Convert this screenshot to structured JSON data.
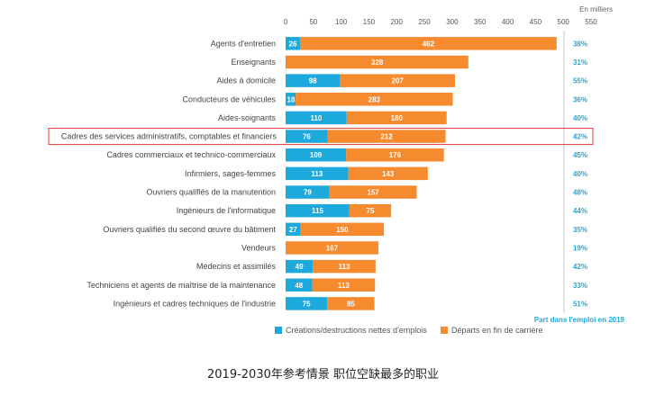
{
  "chart_data": {
    "type": "bar",
    "stacked": true,
    "orientation": "horizontal",
    "unit_label": "En milliers",
    "xlim": [
      0,
      550
    ],
    "xticks": [
      0,
      50,
      100,
      150,
      200,
      250,
      300,
      350,
      400,
      450,
      500,
      550
    ],
    "categories": [
      "Agents d'entretien",
      "Enseignants",
      "Aides à domicile",
      "Conducteurs de véhicules",
      "Aides-soignants",
      "Cadres des services administratifs, comptables et financiers",
      "Cadres commerciaux et technico-commerciaux",
      "Infirmiers, sages-femmes",
      "Ouvriers qualifiés de la manutention",
      "Ingénieurs de l'informatique",
      "Ouvriers qualifiés du second œuvre du bâtiment",
      "Vendeurs",
      "Médecins et assimilés",
      "Techniciens et agents de maîtrise de la maintenance",
      "Ingénieurs et cadres techniques de l'industrie"
    ],
    "series": [
      {
        "name": "Créations/destructions nettes d'emplois",
        "color": "#1ea9dc",
        "values": [
          26,
          1,
          98,
          18,
          110,
          76,
          109,
          113,
          79,
          115,
          27,
          0,
          49,
          48,
          75
        ],
        "labels": [
          "26",
          "1",
          "98",
          "18",
          "110",
          "76",
          "109",
          "113",
          "79",
          "115",
          "27",
          "",
          "49",
          "48",
          "75"
        ]
      },
      {
        "name": "Départs en fin de carrière",
        "color": "#f58a2e",
        "values": [
          462,
          328,
          207,
          283,
          180,
          212,
          176,
          143,
          157,
          75,
          150,
          167,
          113,
          113,
          85
        ],
        "labels": [
          "462",
          "328",
          "207",
          "283",
          "180",
          "212",
          "176",
          "143",
          "157",
          "75",
          "150",
          "167",
          "113",
          "113",
          "85"
        ]
      }
    ],
    "share_title": "Part dans l'emploi en 2019",
    "share_values": [
      "38%",
      "31%",
      "55%",
      "36%",
      "40%",
      "42%",
      "45%",
      "40%",
      "48%",
      "44%",
      "35%",
      "19%",
      "42%",
      "33%",
      "51%"
    ],
    "highlighted_category": "Cadres des services administratifs, comptables et financiers",
    "highlight_color": "#e0393e"
  },
  "caption": "2019-2030年参考情景 职位空缺最多的职业"
}
